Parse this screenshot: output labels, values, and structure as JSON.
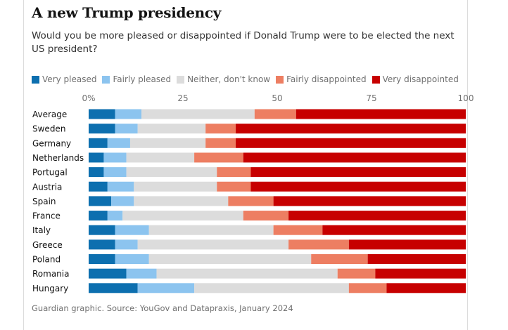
{
  "header": {
    "title": "A new Trump presidency",
    "subtitle": "Would you be more pleased or disappointed if Donald Trump were to be elected the next US president?"
  },
  "legend": [
    {
      "label": "Very pleased",
      "color": "#0d6faf"
    },
    {
      "label": "Fairly pleased",
      "color": "#8cc4ef"
    },
    {
      "label": "Neither, don't know",
      "color": "#dcdcdc"
    },
    {
      "label": "Fairly disappointed",
      "color": "#ed7e62"
    },
    {
      "label": "Very disappointed",
      "color": "#c70000"
    }
  ],
  "footer": {
    "source": "Guardian graphic. Source: YouGov and Datapraxis, January 2024"
  },
  "chart_data": {
    "type": "bar",
    "orientation": "horizontal",
    "stacked": true,
    "title": "A new Trump presidency",
    "xlim": [
      0,
      100
    ],
    "x_ticks": [
      {
        "value": 0,
        "label": "0%"
      },
      {
        "value": 25,
        "label": "25"
      },
      {
        "value": 50,
        "label": "50"
      },
      {
        "value": 75,
        "label": "75"
      },
      {
        "value": 100,
        "label": "100"
      }
    ],
    "categories": [
      "Average",
      "Sweden",
      "Germany",
      "Netherlands",
      "Portugal",
      "Austria",
      "Spain",
      "France",
      "Italy",
      "Greece",
      "Poland",
      "Romania",
      "Hungary"
    ],
    "series": [
      {
        "name": "Very pleased",
        "color": "#0d6faf",
        "values": [
          7,
          7,
          5,
          4,
          4,
          5,
          6,
          5,
          7,
          7,
          7,
          10,
          13
        ]
      },
      {
        "name": "Fairly pleased",
        "color": "#8cc4ef",
        "values": [
          7,
          6,
          6,
          6,
          6,
          7,
          6,
          4,
          9,
          6,
          9,
          8,
          15
        ]
      },
      {
        "name": "Neither, don't know",
        "color": "#dcdcdc",
        "values": [
          30,
          18,
          20,
          18,
          24,
          22,
          25,
          32,
          33,
          40,
          43,
          48,
          41
        ]
      },
      {
        "name": "Fairly disappointed",
        "color": "#ed7e62",
        "values": [
          11,
          8,
          8,
          13,
          9,
          9,
          12,
          12,
          13,
          16,
          15,
          10,
          10
        ]
      },
      {
        "name": "Very disappointed",
        "color": "#c70000",
        "values": [
          45,
          61,
          61,
          59,
          57,
          57,
          51,
          47,
          38,
          31,
          26,
          24,
          21
        ]
      }
    ]
  }
}
